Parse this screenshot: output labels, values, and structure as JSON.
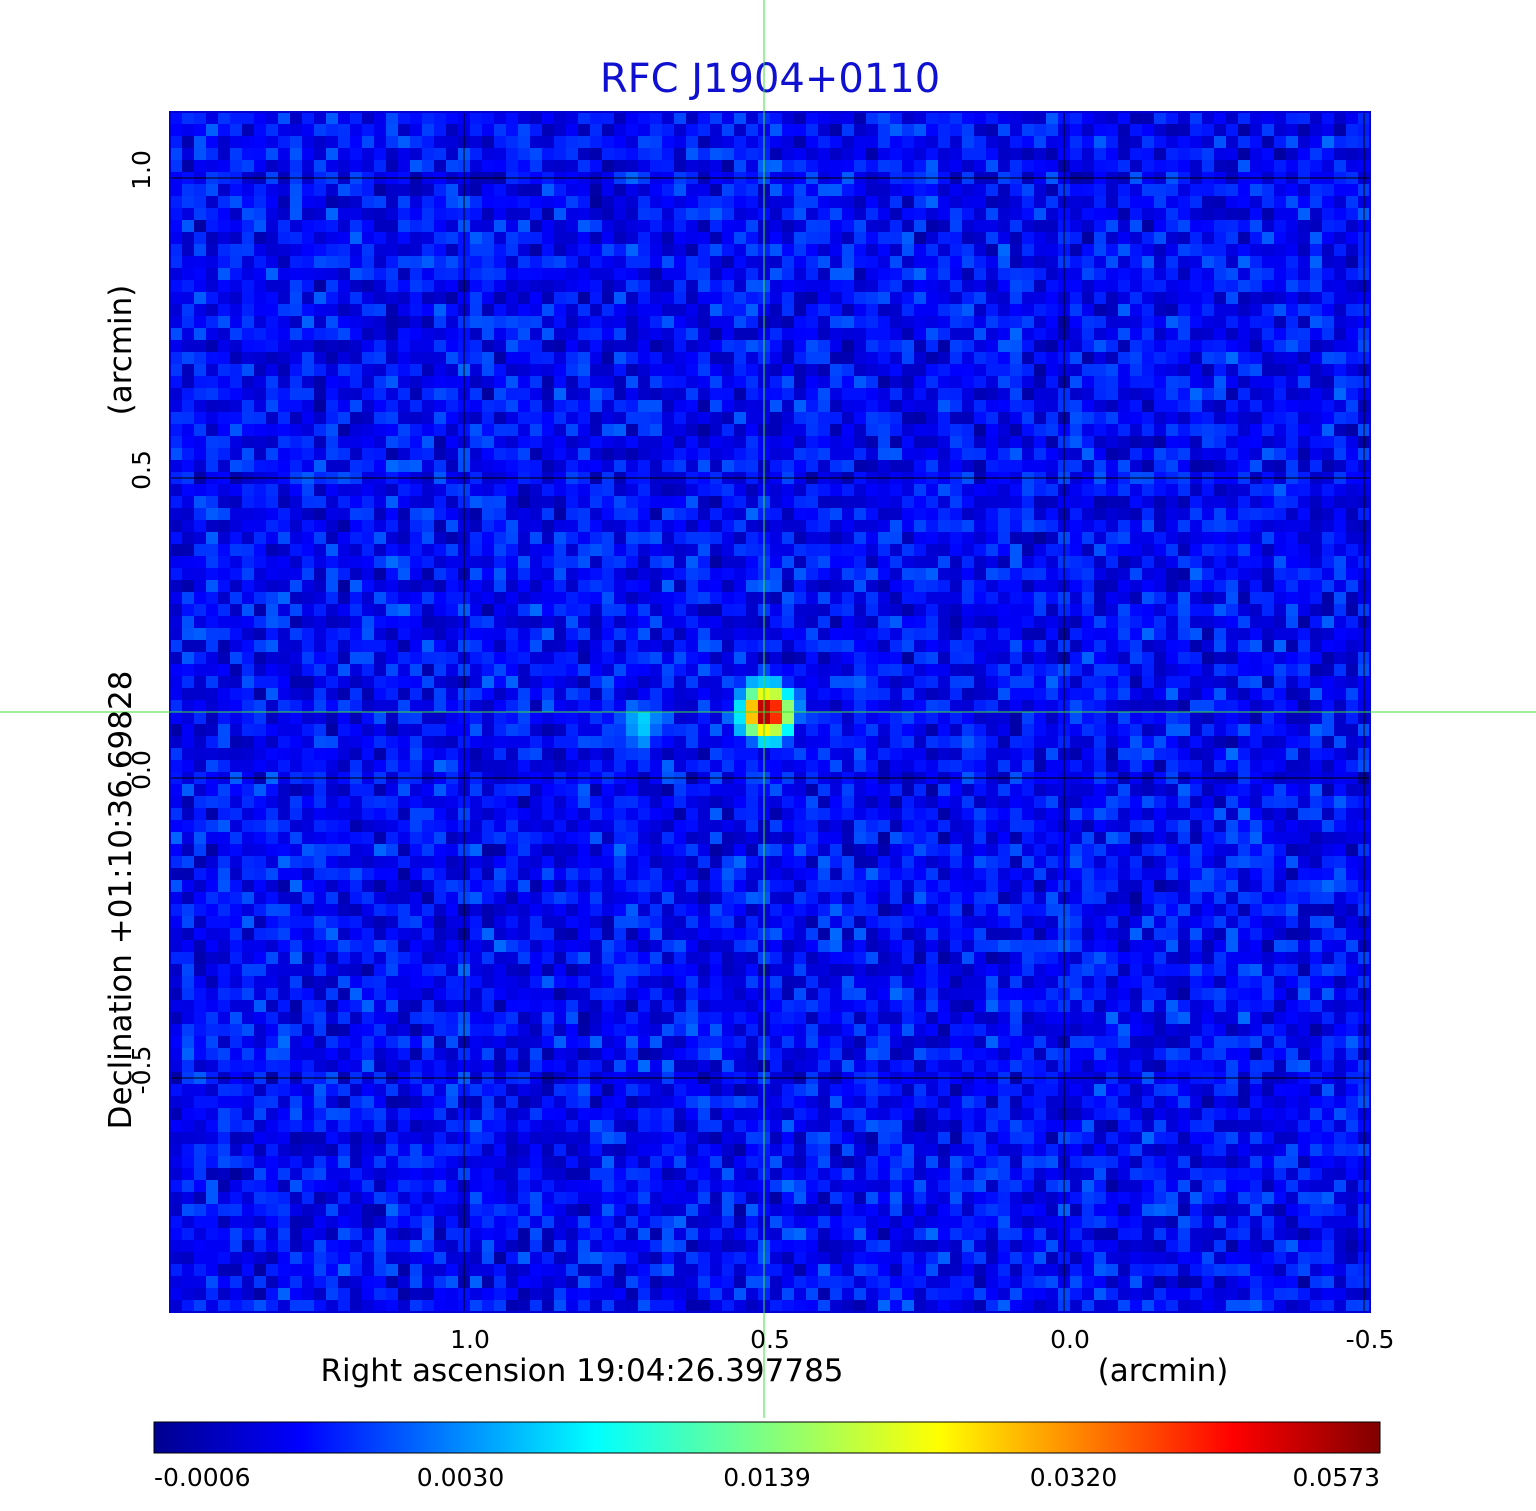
{
  "chart_data": {
    "type": "heatmap",
    "title": "RFC J1904+0110",
    "xlabel": "Right ascension  19:04:26.397785",
    "xlabel_unit": "(arcmin)",
    "ylabel": "Declination  +01:10:36.69828",
    "ylabel_unit": "(arcmin)",
    "xlim": [
      1.49,
      -0.51
    ],
    "ylim": [
      -0.89,
      1.11
    ],
    "x_ticks": [
      {
        "value": 1.0,
        "label": "1.0"
      },
      {
        "value": 0.5,
        "label": "0.5"
      },
      {
        "value": 0.0,
        "label": "0.0"
      },
      {
        "value": -0.5,
        "label": "-0.5"
      }
    ],
    "y_ticks": [
      {
        "value": -0.5,
        "label": "-0.5"
      },
      {
        "value": 0.0,
        "label": "0.0"
      },
      {
        "value": 0.5,
        "label": "0.5"
      },
      {
        "value": 1.0,
        "label": "1.0"
      }
    ],
    "grid": true,
    "crosshair": {
      "x": 0.5,
      "y": 0.11,
      "color": "#3ce03c"
    },
    "colormap": "jet",
    "colorbar_ticks": [
      "-0.0006",
      "0.0030",
      "0.0139",
      "0.0320",
      "0.0573"
    ],
    "background_level": 0.0011,
    "sources": [
      {
        "name": "main",
        "x": 0.495,
        "y": 0.11,
        "peak": 0.0573,
        "width": 0.022
      },
      {
        "name": "secondary",
        "x": 0.7,
        "y": 0.09,
        "peak": 0.0045,
        "width": 0.02
      }
    ]
  }
}
